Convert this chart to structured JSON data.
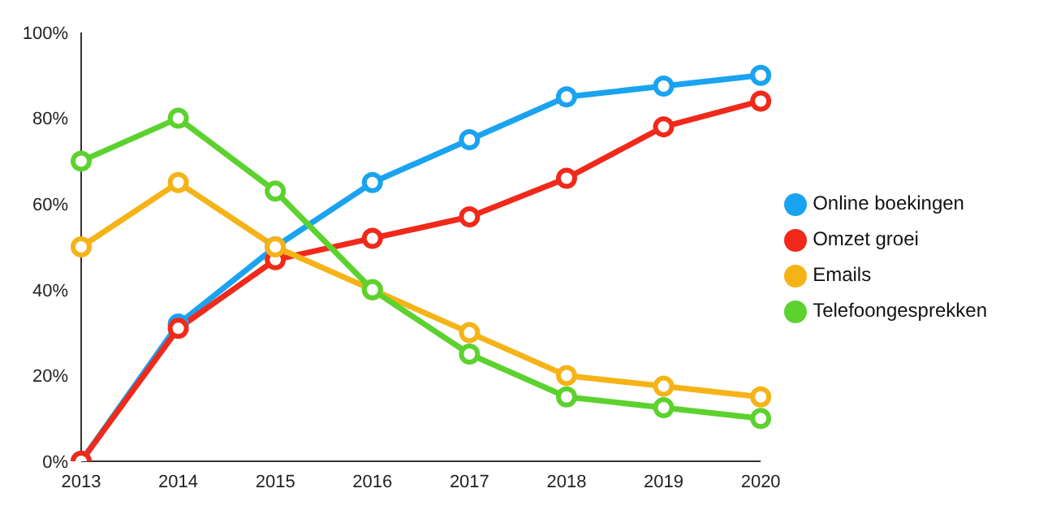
{
  "chart_data": {
    "type": "line",
    "categories": [
      "2013",
      "2014",
      "2015",
      "2016",
      "2017",
      "2018",
      "2019",
      "2020"
    ],
    "series": [
      {
        "name": "Online boekingen",
        "color": "#1aa3f0",
        "values": [
          0,
          32,
          50,
          65,
          75,
          85,
          87.5,
          90
        ]
      },
      {
        "name": "Omzet groei",
        "color": "#f0291a",
        "values": [
          0,
          31,
          47,
          52,
          57,
          66,
          78,
          84
        ]
      },
      {
        "name": "Emails",
        "color": "#f5b318",
        "values": [
          50,
          65,
          50,
          40,
          30,
          20,
          17.5,
          15
        ]
      },
      {
        "name": "Telefoongesprekken",
        "color": "#5cd22e",
        "values": [
          70,
          80,
          63,
          40,
          25,
          15,
          12.5,
          10
        ]
      }
    ],
    "ylim": [
      0,
      100
    ],
    "yticks": [
      {
        "value": 0,
        "label": "0%"
      },
      {
        "value": 20,
        "label": "20%"
      },
      {
        "value": 40,
        "label": "40%"
      },
      {
        "value": 60,
        "label": "60%"
      },
      {
        "value": 80,
        "label": "80%"
      },
      {
        "value": 100,
        "label": "100%"
      }
    ],
    "marker": "circle",
    "legend": "right"
  }
}
